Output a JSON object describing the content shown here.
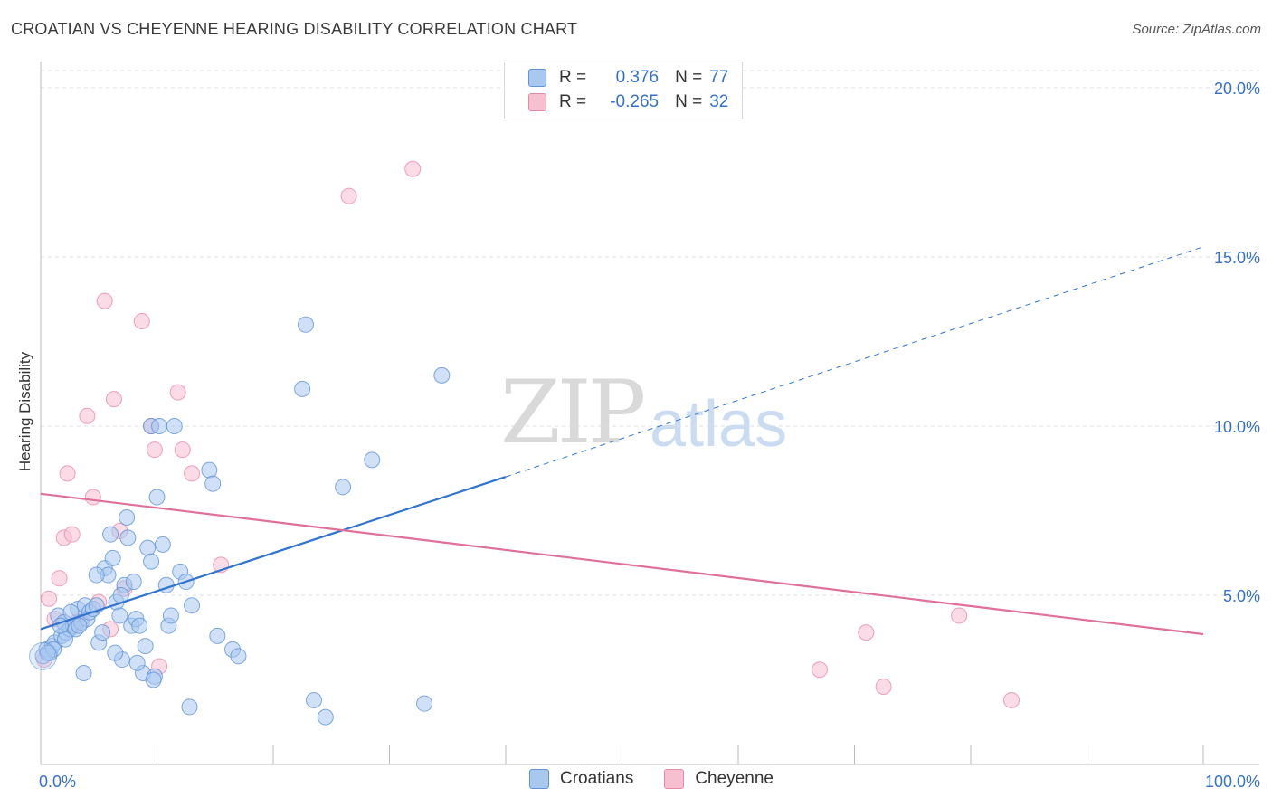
{
  "title": "CROATIAN VS CHEYENNE HEARING DISABILITY CORRELATION CHART",
  "source": "Source: ZipAtlas.com",
  "watermark": {
    "part1": "ZIP",
    "part2": "atlas"
  },
  "legend": {
    "rows": [
      {
        "r_label": "R =",
        "r_value": "0.376",
        "n_label": "N =",
        "n_value": "77",
        "color": "#a9c8f0"
      },
      {
        "r_label": "R =",
        "r_value": "-0.265",
        "n_label": "N =",
        "n_value": "32",
        "color": "#f7b6cb"
      }
    ]
  },
  "colors": {
    "croatians_fill": "#a9c8f0",
    "croatians_stroke": "#5f94d6",
    "croatians_line": "#2f74d0",
    "cheyenne_fill": "#f7c0d1",
    "cheyenne_stroke": "#e889a8",
    "cheyenne_line": "#e0709a",
    "axis_label": "#3571c8"
  },
  "chart_data": {
    "type": "scatter",
    "title": "CROATIAN VS CHEYENNE HEARING DISABILITY CORRELATION CHART",
    "xlabel": "",
    "ylabel": "Hearing Disability",
    "xlim": [
      0,
      100
    ],
    "ylim": [
      0,
      20.5
    ],
    "x_tick_labels": [
      "0.0%",
      "100.0%"
    ],
    "y_ticks": [
      5,
      10,
      15,
      20
    ],
    "y_tick_labels": [
      "5.0%",
      "10.0%",
      "15.0%",
      "20.0%"
    ],
    "grid": true,
    "legend_position": "bottom",
    "series": [
      {
        "name": "Croatians",
        "r": 0.376,
        "n": 77,
        "trend": {
          "x0": 0,
          "y0": 4.0,
          "x1": 40,
          "y1": 8.5,
          "dashed_to_x": 100,
          "dashed_to_y": 15.3
        },
        "points": [
          [
            0.2,
            3.2
          ],
          [
            0.5,
            3.4
          ],
          [
            0.8,
            3.3
          ],
          [
            1.0,
            3.5
          ],
          [
            1.2,
            3.6
          ],
          [
            1.5,
            4.4
          ],
          [
            1.8,
            3.8
          ],
          [
            2.0,
            4.2
          ],
          [
            2.2,
            3.9
          ],
          [
            2.5,
            4.0
          ],
          [
            2.8,
            4.1
          ],
          [
            3.0,
            4.0
          ],
          [
            3.2,
            4.6
          ],
          [
            3.5,
            4.2
          ],
          [
            3.8,
            4.7
          ],
          [
            4.0,
            4.3
          ],
          [
            4.2,
            4.5
          ],
          [
            4.5,
            4.6
          ],
          [
            4.8,
            4.7
          ],
          [
            5.0,
            3.6
          ],
          [
            3.7,
            2.7
          ],
          [
            5.5,
            5.8
          ],
          [
            5.8,
            5.6
          ],
          [
            6.0,
            6.8
          ],
          [
            6.2,
            6.1
          ],
          [
            6.5,
            4.8
          ],
          [
            6.8,
            4.4
          ],
          [
            7.0,
            3.1
          ],
          [
            7.2,
            5.3
          ],
          [
            7.5,
            6.7
          ],
          [
            7.8,
            4.1
          ],
          [
            8.0,
            5.4
          ],
          [
            8.2,
            4.3
          ],
          [
            8.5,
            4.1
          ],
          [
            8.8,
            2.7
          ],
          [
            9.0,
            3.5
          ],
          [
            9.2,
            6.4
          ],
          [
            9.5,
            6.0
          ],
          [
            9.8,
            2.6
          ],
          [
            10.0,
            7.9
          ],
          [
            10.5,
            6.5
          ],
          [
            10.8,
            5.3
          ],
          [
            11.0,
            4.1
          ],
          [
            11.2,
            4.4
          ],
          [
            12.0,
            5.7
          ],
          [
            12.5,
            5.4
          ],
          [
            13.0,
            4.7
          ],
          [
            9.5,
            10.0
          ],
          [
            10.2,
            10.0
          ],
          [
            11.5,
            10.0
          ],
          [
            14.5,
            8.7
          ],
          [
            14.8,
            8.3
          ],
          [
            15.2,
            3.8
          ],
          [
            16.5,
            3.4
          ],
          [
            17.0,
            3.2
          ],
          [
            22.5,
            11.1
          ],
          [
            22.8,
            13.0
          ],
          [
            23.5,
            1.9
          ],
          [
            24.5,
            1.4
          ],
          [
            26.0,
            8.2
          ],
          [
            28.5,
            9.0
          ],
          [
            33.0,
            1.8
          ],
          [
            34.5,
            11.5
          ],
          [
            12.8,
            1.7
          ],
          [
            7.4,
            7.3
          ],
          [
            6.4,
            3.3
          ],
          [
            4.8,
            5.6
          ],
          [
            2.6,
            4.5
          ],
          [
            1.1,
            3.4
          ],
          [
            3.3,
            4.1
          ],
          [
            8.3,
            3.0
          ],
          [
            9.7,
            2.5
          ],
          [
            5.3,
            3.9
          ],
          [
            6.9,
            5.0
          ],
          [
            2.1,
            3.7
          ],
          [
            0.6,
            3.3
          ],
          [
            1.7,
            4.1
          ]
        ]
      },
      {
        "name": "Cheyenne",
        "r": -0.265,
        "n": 32,
        "trend": {
          "x0": 0,
          "y0": 8.0,
          "x1": 100,
          "y1": 3.85
        },
        "points": [
          [
            0.3,
            3.1
          ],
          [
            0.7,
            4.9
          ],
          [
            1.2,
            4.3
          ],
          [
            1.6,
            5.5
          ],
          [
            2.0,
            6.7
          ],
          [
            2.3,
            8.6
          ],
          [
            2.7,
            6.8
          ],
          [
            3.1,
            4.2
          ],
          [
            3.5,
            4.3
          ],
          [
            4.0,
            10.3
          ],
          [
            4.5,
            7.9
          ],
          [
            5.0,
            4.8
          ],
          [
            5.5,
            13.7
          ],
          [
            6.0,
            4.0
          ],
          [
            6.3,
            10.8
          ],
          [
            6.8,
            6.9
          ],
          [
            7.2,
            5.2
          ],
          [
            8.7,
            13.1
          ],
          [
            9.5,
            10.0
          ],
          [
            9.8,
            9.3
          ],
          [
            10.2,
            2.9
          ],
          [
            11.8,
            11.0
          ],
          [
            12.2,
            9.3
          ],
          [
            13.0,
            8.6
          ],
          [
            15.5,
            5.9
          ],
          [
            26.5,
            16.8
          ],
          [
            32.0,
            17.6
          ],
          [
            67.0,
            2.8
          ],
          [
            71.0,
            3.9
          ],
          [
            72.5,
            2.3
          ],
          [
            79.0,
            4.4
          ],
          [
            83.5,
            1.9
          ]
        ]
      }
    ]
  }
}
